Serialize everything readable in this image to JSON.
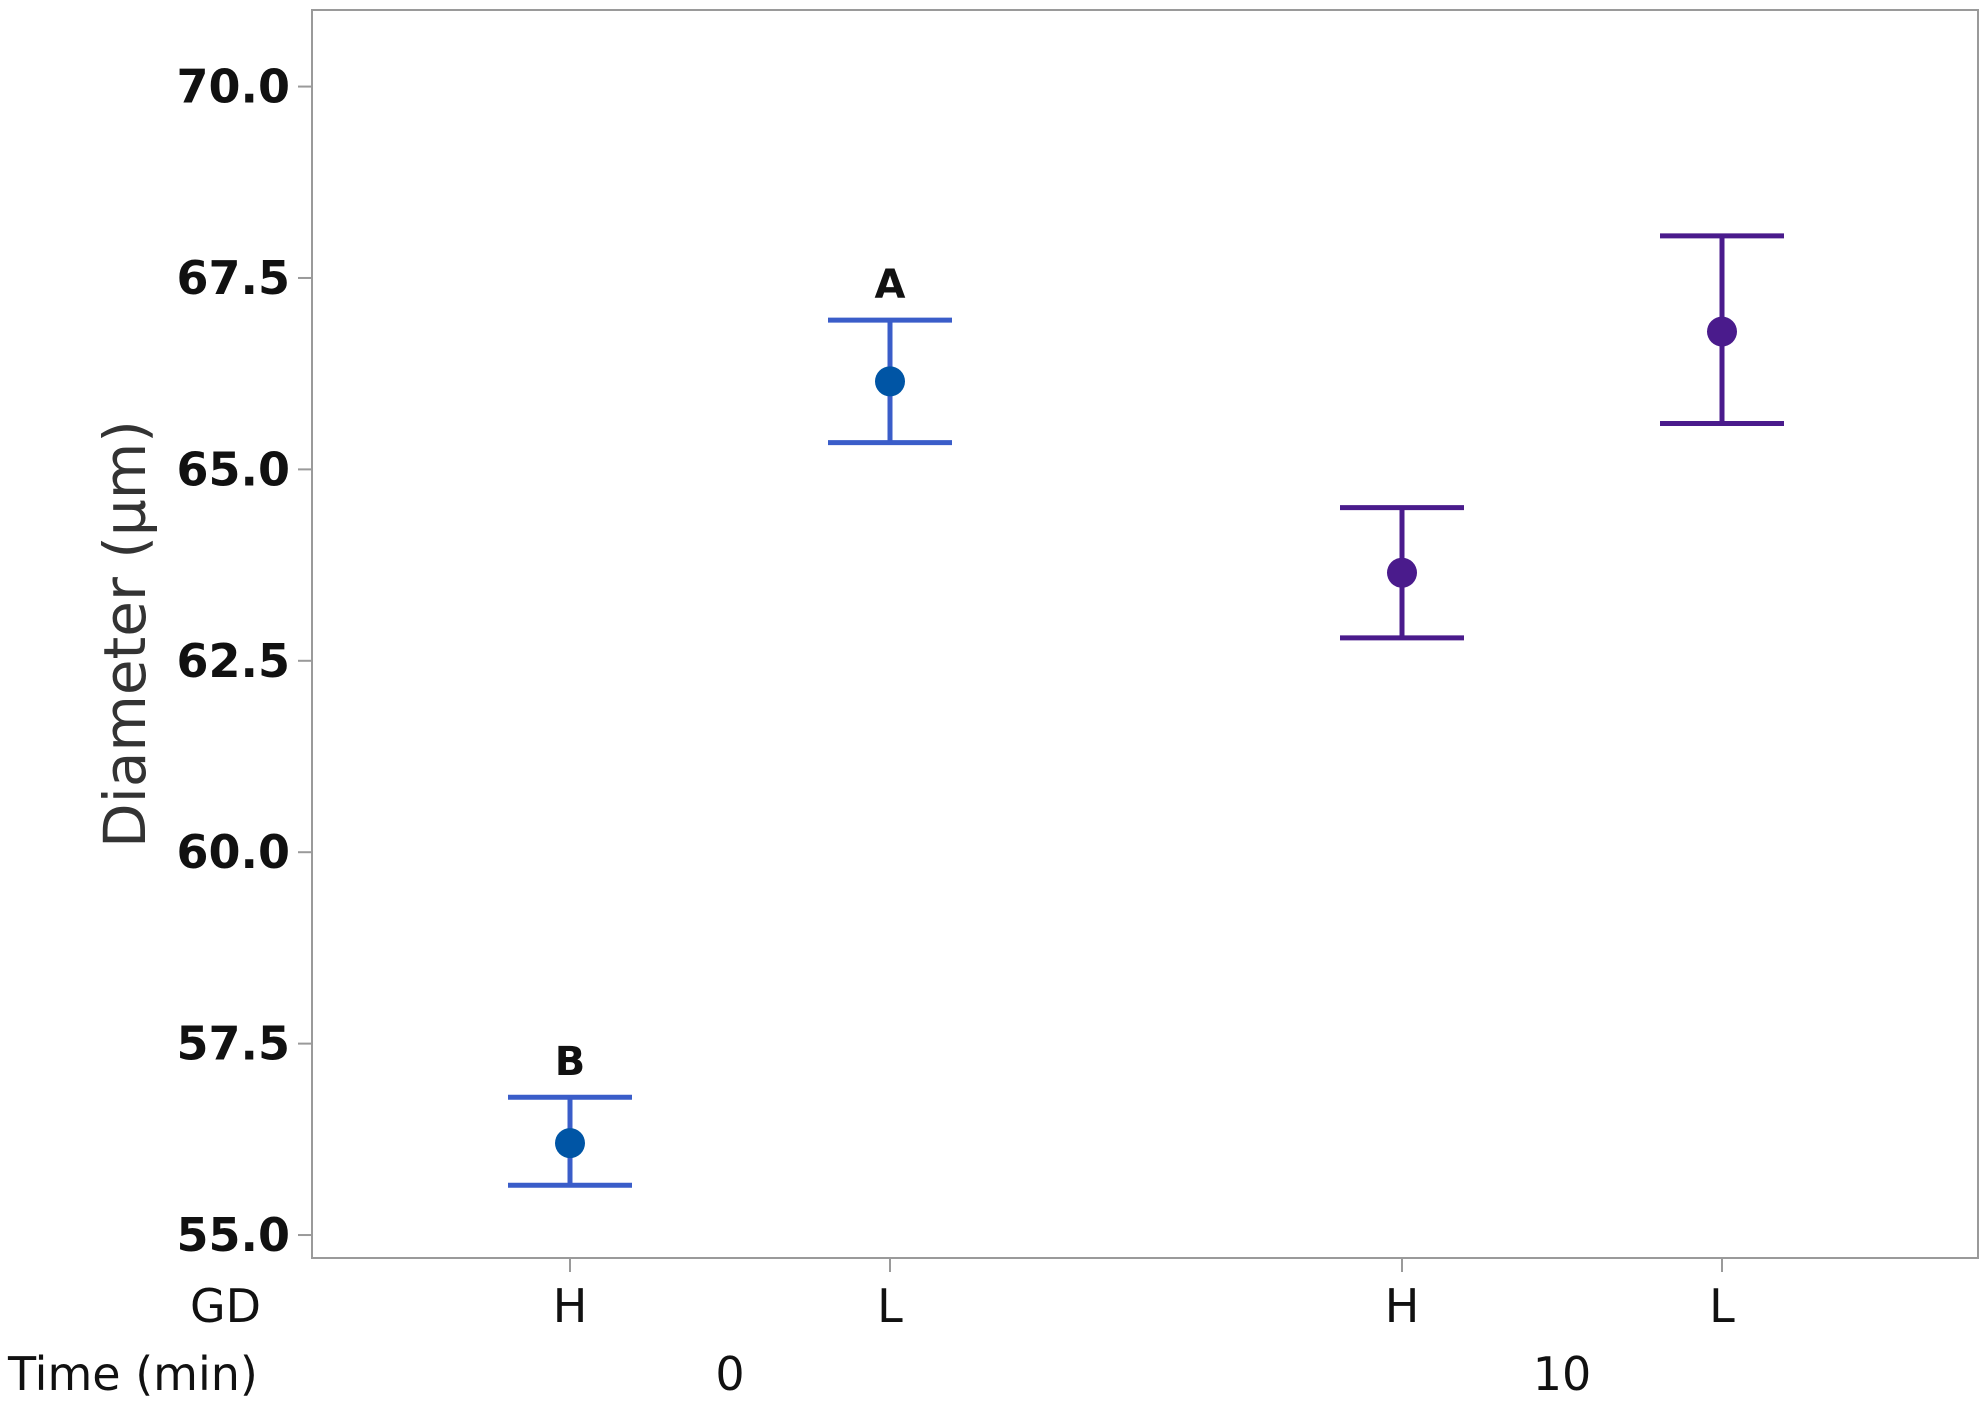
{
  "chart_data": {
    "type": "scatter",
    "title": "",
    "ylabel": "Diameter (µm)",
    "ylim": [
      54.7,
      71.0
    ],
    "yticks": [
      "55.0",
      "57.5",
      "60.0",
      "62.5",
      "65.0",
      "67.5",
      "70.0"
    ],
    "grid": false,
    "factor_labels": [
      "GD",
      "Time (min)"
    ],
    "groups": [
      {
        "time": "0",
        "color": "#0055a5",
        "error_color": "#3a5dc9",
        "points": [
          {
            "gd": "H",
            "mean": 56.2,
            "lower": 55.65,
            "upper": 56.8,
            "annotation": "B"
          },
          {
            "gd": "L",
            "mean": 66.15,
            "lower": 65.35,
            "upper": 66.95,
            "annotation": "A"
          }
        ]
      },
      {
        "time": "10",
        "color": "#4a1b8c",
        "error_color": "#4a1b8c",
        "points": [
          {
            "gd": "H",
            "mean": 63.65,
            "lower": 62.8,
            "upper": 64.5,
            "annotation": ""
          },
          {
            "gd": "L",
            "mean": 66.8,
            "lower": 65.6,
            "upper": 68.05,
            "annotation": ""
          }
        ]
      }
    ]
  }
}
